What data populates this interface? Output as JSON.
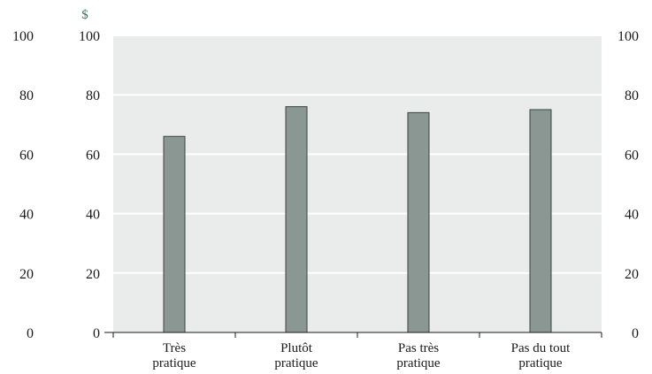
{
  "chart_data": {
    "type": "bar",
    "unit_label": "$",
    "categories": [
      [
        "Très",
        "pratique"
      ],
      [
        "Plutôt",
        "pratique"
      ],
      [
        "Pas très",
        "pratique"
      ],
      [
        "Pas du tout",
        "pratique"
      ]
    ],
    "values": [
      66,
      76,
      74,
      75
    ],
    "ylim": [
      0,
      100
    ],
    "yticks": [
      0,
      20,
      40,
      60,
      80,
      100
    ],
    "grid": true,
    "colors": {
      "plot_background": "#e9ecea",
      "grid": "#ffffff",
      "bar_fill": "#8a9792",
      "bar_stroke": "#3a4441"
    }
  }
}
